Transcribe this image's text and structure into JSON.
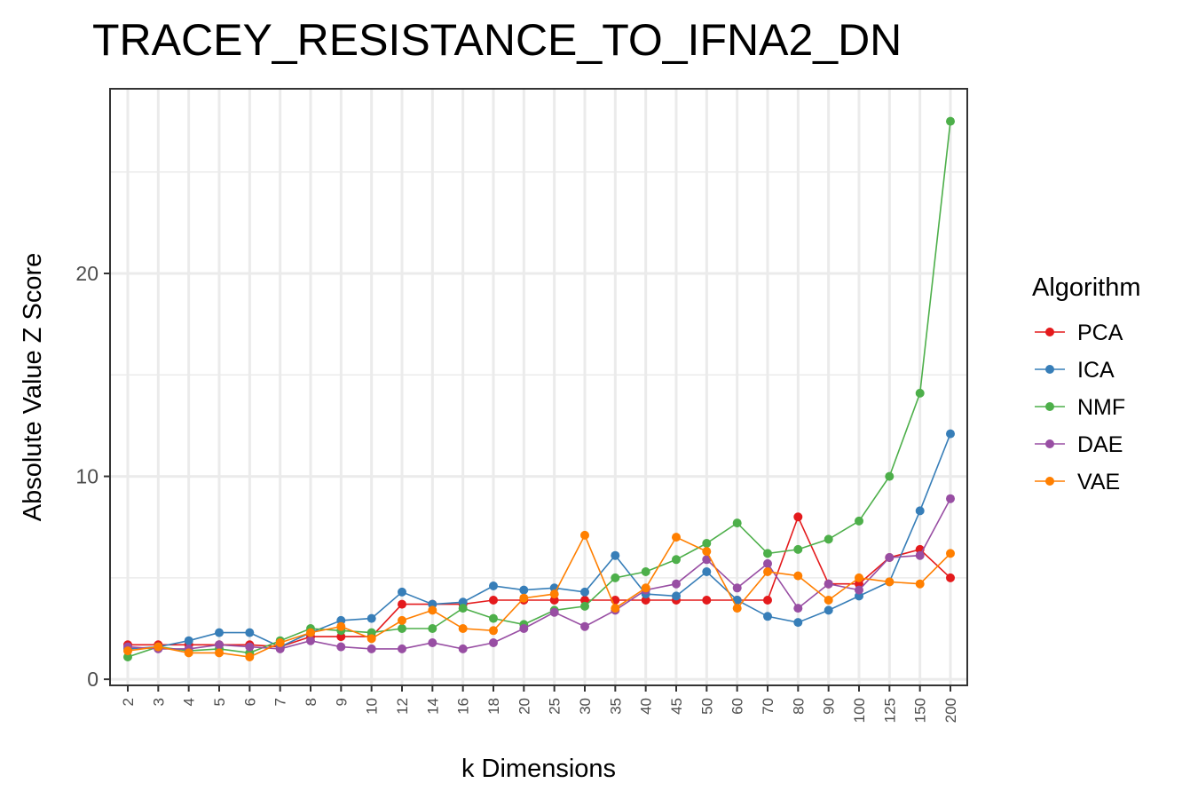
{
  "chart_data": {
    "type": "line",
    "title": "TRACEY_RESISTANCE_TO_IFNA2_DN",
    "xlabel": "k Dimensions",
    "ylabel": "Absolute Value Z Score",
    "categories": [
      "2",
      "3",
      "4",
      "5",
      "6",
      "7",
      "8",
      "9",
      "10",
      "12",
      "14",
      "16",
      "18",
      "20",
      "25",
      "30",
      "35",
      "40",
      "45",
      "50",
      "60",
      "70",
      "80",
      "90",
      "100",
      "125",
      "150",
      "200"
    ],
    "ylim": [
      -0.3,
      29.1
    ],
    "yticks": [
      0,
      10,
      20
    ],
    "grid": true,
    "legend": {
      "title": "Algorithm",
      "position": "right"
    },
    "series": [
      {
        "name": "PCA",
        "color": "#e41a1c",
        "values": [
          1.7,
          1.7,
          1.7,
          1.7,
          1.7,
          1.6,
          2.1,
          2.1,
          2.1,
          3.7,
          3.7,
          3.7,
          3.9,
          3.9,
          3.9,
          3.9,
          3.9,
          3.9,
          3.9,
          3.9,
          3.9,
          3.9,
          8.0,
          4.7,
          4.7,
          6.0,
          6.4,
          5.0
        ]
      },
      {
        "name": "ICA",
        "color": "#377eb8",
        "values": [
          1.5,
          1.6,
          1.9,
          2.3,
          2.3,
          1.6,
          2.3,
          2.9,
          3.0,
          4.3,
          3.7,
          3.8,
          4.6,
          4.4,
          4.5,
          4.3,
          6.1,
          4.2,
          4.1,
          5.3,
          3.9,
          3.1,
          2.8,
          3.4,
          4.1,
          4.8,
          8.3,
          12.1
        ]
      },
      {
        "name": "NMF",
        "color": "#4daf4a",
        "values": [
          1.1,
          1.6,
          1.4,
          1.5,
          1.3,
          1.9,
          2.5,
          2.4,
          2.3,
          2.5,
          2.5,
          3.5,
          3.0,
          2.7,
          3.4,
          3.6,
          5.0,
          5.3,
          5.9,
          6.7,
          7.7,
          6.2,
          6.4,
          6.9,
          7.8,
          10.0,
          14.1,
          27.5
        ]
      },
      {
        "name": "DAE",
        "color": "#984ea3",
        "values": [
          1.6,
          1.5,
          1.5,
          1.7,
          1.6,
          1.5,
          1.9,
          1.6,
          1.5,
          1.5,
          1.8,
          1.5,
          1.8,
          2.5,
          3.3,
          2.6,
          3.4,
          4.4,
          4.7,
          5.9,
          4.5,
          5.7,
          3.5,
          4.7,
          4.4,
          6.0,
          6.1,
          8.9
        ]
      },
      {
        "name": "VAE",
        "color": "#ff7f00",
        "values": [
          1.4,
          1.6,
          1.3,
          1.3,
          1.1,
          1.8,
          2.3,
          2.6,
          2.0,
          2.9,
          3.4,
          2.5,
          2.4,
          4.0,
          4.2,
          7.1,
          3.5,
          4.5,
          7.0,
          6.3,
          3.5,
          5.3,
          5.1,
          3.9,
          5.0,
          4.8,
          4.7,
          6.2
        ]
      }
    ]
  }
}
